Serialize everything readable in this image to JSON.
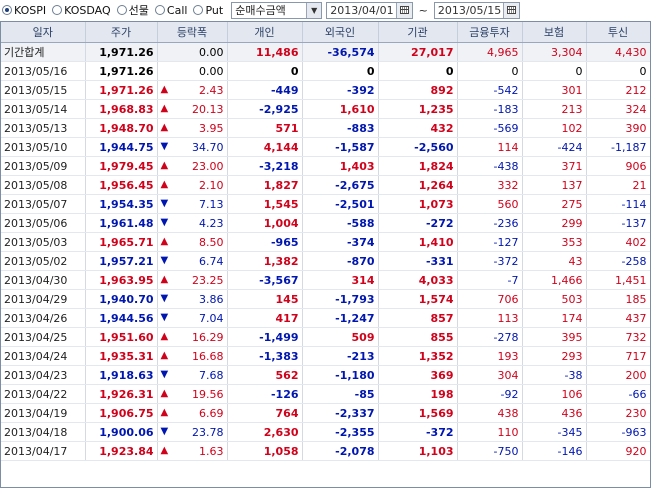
{
  "toolbar": {
    "markets": [
      {
        "label": "KOSPI",
        "selected": true
      },
      {
        "label": "KOSDAQ",
        "selected": false
      },
      {
        "label": "선물",
        "selected": false
      },
      {
        "label": "Call",
        "selected": false
      },
      {
        "label": "Put",
        "selected": false
      }
    ],
    "mode_select": "순매수금액",
    "start_date": "2013/04/01",
    "separator": "~",
    "end_date": "2013/05/15"
  },
  "colors": {
    "up": "#d0021b",
    "down": "#0016b0",
    "header_bg": "#e3e8f0"
  },
  "table": {
    "headers": [
      "일자",
      "주가",
      "등락폭",
      "개인",
      "외국인",
      "기관",
      "금융투자",
      "보험",
      "투신"
    ],
    "summary": {
      "date": "기간합계",
      "price": "1,971.26",
      "change": "0.00",
      "individual": "11,486",
      "foreign": "-36,574",
      "institution": "27,017",
      "fin_invest": "4,965",
      "insurance": "3,304",
      "trust": "4,430"
    },
    "rows": [
      {
        "date": "2013/05/16",
        "price": "1,971.26",
        "dir": "flat",
        "change": "0.00",
        "individual": "0",
        "foreign": "0",
        "institution": "0",
        "fin_invest": "0",
        "insurance": "0",
        "trust": "0"
      },
      {
        "date": "2013/05/15",
        "price": "1,971.26",
        "dir": "up",
        "change": "2.43",
        "individual": "-449",
        "foreign": "-392",
        "institution": "892",
        "fin_invest": "-542",
        "insurance": "301",
        "trust": "212"
      },
      {
        "date": "2013/05/14",
        "price": "1,968.83",
        "dir": "up",
        "change": "20.13",
        "individual": "-2,925",
        "foreign": "1,610",
        "institution": "1,235",
        "fin_invest": "-183",
        "insurance": "213",
        "trust": "324"
      },
      {
        "date": "2013/05/13",
        "price": "1,948.70",
        "dir": "up",
        "change": "3.95",
        "individual": "571",
        "foreign": "-883",
        "institution": "432",
        "fin_invest": "-569",
        "insurance": "102",
        "trust": "390"
      },
      {
        "date": "2013/05/10",
        "price": "1,944.75",
        "dir": "down",
        "change": "34.70",
        "individual": "4,144",
        "foreign": "-1,587",
        "institution": "-2,560",
        "fin_invest": "114",
        "insurance": "-424",
        "trust": "-1,187"
      },
      {
        "date": "2013/05/09",
        "price": "1,979.45",
        "dir": "up",
        "change": "23.00",
        "individual": "-3,218",
        "foreign": "1,403",
        "institution": "1,824",
        "fin_invest": "-438",
        "insurance": "371",
        "trust": "906"
      },
      {
        "date": "2013/05/08",
        "price": "1,956.45",
        "dir": "up",
        "change": "2.10",
        "individual": "1,827",
        "foreign": "-2,675",
        "institution": "1,264",
        "fin_invest": "332",
        "insurance": "137",
        "trust": "21"
      },
      {
        "date": "2013/05/07",
        "price": "1,954.35",
        "dir": "down",
        "change": "7.13",
        "individual": "1,545",
        "foreign": "-2,501",
        "institution": "1,073",
        "fin_invest": "560",
        "insurance": "275",
        "trust": "-114"
      },
      {
        "date": "2013/05/06",
        "price": "1,961.48",
        "dir": "down",
        "change": "4.23",
        "individual": "1,004",
        "foreign": "-588",
        "institution": "-272",
        "fin_invest": "-236",
        "insurance": "299",
        "trust": "-137"
      },
      {
        "date": "2013/05/03",
        "price": "1,965.71",
        "dir": "up",
        "change": "8.50",
        "individual": "-965",
        "foreign": "-374",
        "institution": "1,410",
        "fin_invest": "-127",
        "insurance": "353",
        "trust": "402"
      },
      {
        "date": "2013/05/02",
        "price": "1,957.21",
        "dir": "down",
        "change": "6.74",
        "individual": "1,382",
        "foreign": "-870",
        "institution": "-331",
        "fin_invest": "-372",
        "insurance": "43",
        "trust": "-258"
      },
      {
        "date": "2013/04/30",
        "price": "1,963.95",
        "dir": "up",
        "change": "23.25",
        "individual": "-3,567",
        "foreign": "314",
        "institution": "4,033",
        "fin_invest": "-7",
        "insurance": "1,466",
        "trust": "1,451"
      },
      {
        "date": "2013/04/29",
        "price": "1,940.70",
        "dir": "down",
        "change": "3.86",
        "individual": "145",
        "foreign": "-1,793",
        "institution": "1,574",
        "fin_invest": "706",
        "insurance": "503",
        "trust": "185"
      },
      {
        "date": "2013/04/26",
        "price": "1,944.56",
        "dir": "down",
        "change": "7.04",
        "individual": "417",
        "foreign": "-1,247",
        "institution": "857",
        "fin_invest": "113",
        "insurance": "174",
        "trust": "437"
      },
      {
        "date": "2013/04/25",
        "price": "1,951.60",
        "dir": "up",
        "change": "16.29",
        "individual": "-1,499",
        "foreign": "509",
        "institution": "855",
        "fin_invest": "-278",
        "insurance": "395",
        "trust": "732"
      },
      {
        "date": "2013/04/24",
        "price": "1,935.31",
        "dir": "up",
        "change": "16.68",
        "individual": "-1,383",
        "foreign": "-213",
        "institution": "1,352",
        "fin_invest": "193",
        "insurance": "293",
        "trust": "717"
      },
      {
        "date": "2013/04/23",
        "price": "1,918.63",
        "dir": "down",
        "change": "7.68",
        "individual": "562",
        "foreign": "-1,180",
        "institution": "369",
        "fin_invest": "304",
        "insurance": "-38",
        "trust": "200"
      },
      {
        "date": "2013/04/22",
        "price": "1,926.31",
        "dir": "up",
        "change": "19.56",
        "individual": "-126",
        "foreign": "-85",
        "institution": "198",
        "fin_invest": "-92",
        "insurance": "106",
        "trust": "-66"
      },
      {
        "date": "2013/04/19",
        "price": "1,906.75",
        "dir": "up",
        "change": "6.69",
        "individual": "764",
        "foreign": "-2,337",
        "institution": "1,569",
        "fin_invest": "438",
        "insurance": "436",
        "trust": "230"
      },
      {
        "date": "2013/04/18",
        "price": "1,900.06",
        "dir": "down",
        "change": "23.78",
        "individual": "2,630",
        "foreign": "-2,355",
        "institution": "-372",
        "fin_invest": "110",
        "insurance": "-345",
        "trust": "-963"
      },
      {
        "date": "2013/04/17",
        "price": "1,923.84",
        "dir": "up",
        "change": "1.63",
        "individual": "1,058",
        "foreign": "-2,078",
        "institution": "1,103",
        "fin_invest": "-750",
        "insurance": "-146",
        "trust": "920"
      }
    ]
  }
}
